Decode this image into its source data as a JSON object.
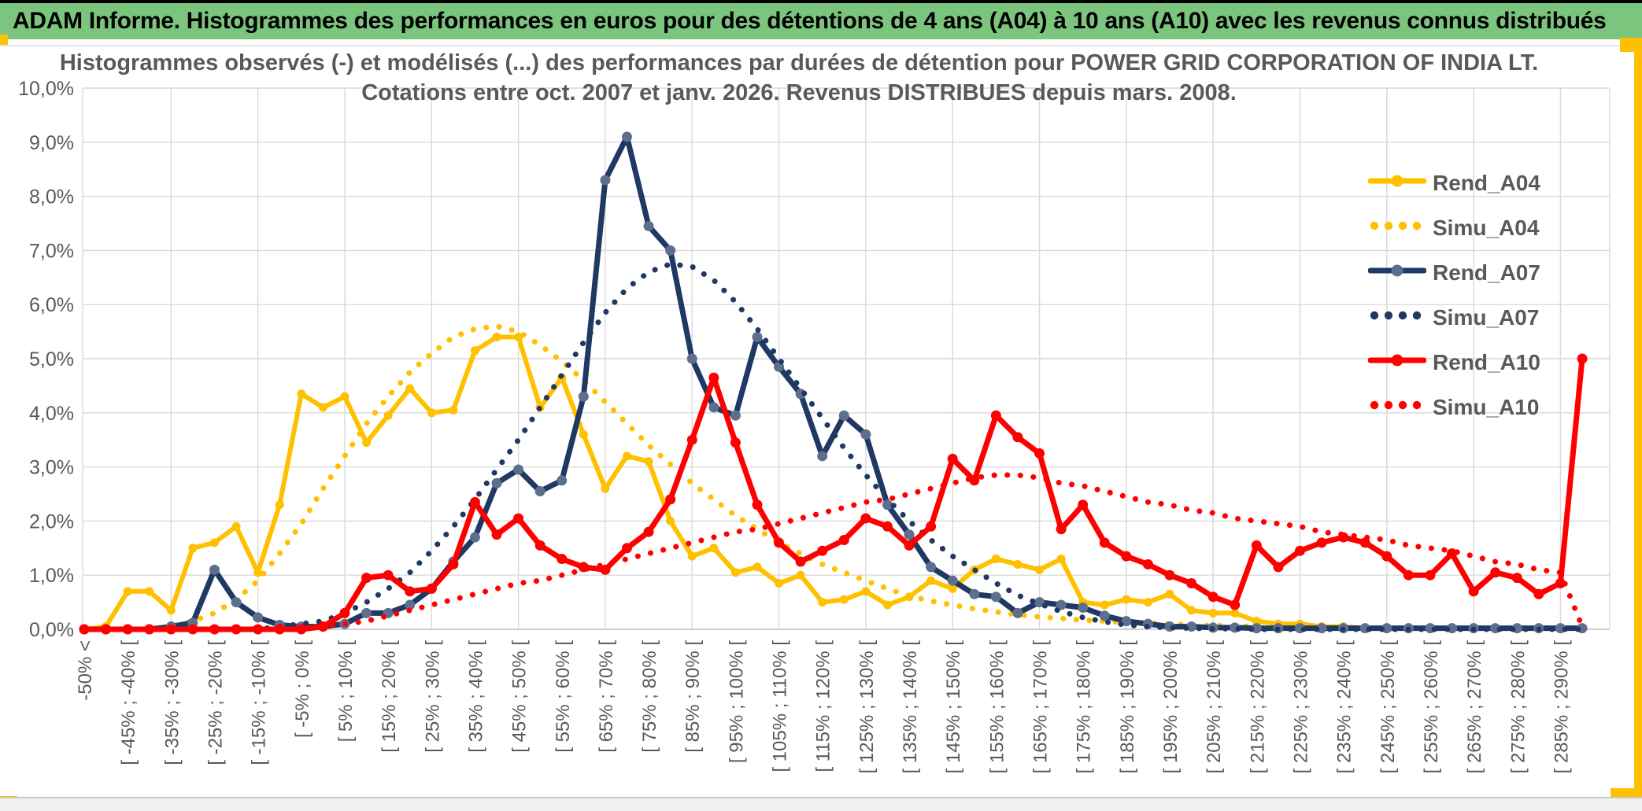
{
  "banner": {
    "text": "ADAM Informe. Histogrammes des performances en euros pour des détentions de 4 ans (A04) à 10 ans (A10) avec les revenus connus distribués"
  },
  "title": {
    "line1": "Histogrammes observés (-) et modélisés (...) des performances par durées de détention pour POWER GRID CORPORATION OF INDIA LT.",
    "line2": "Cotations entre oct. 2007 et janv. 2026. Revenus DISTRIBUES depuis mars. 2008."
  },
  "colors": {
    "gold": "#FFC000",
    "navy": "#1F3864",
    "navy_marker": "#5E6F8D",
    "red": "#FF0000",
    "text_gray": "#595959",
    "grid": "#D9D9D9",
    "axis": "#BFBFBF",
    "banner_bg": "#7CC57E",
    "frame_accent": "#FFC000"
  },
  "legend": {
    "items": [
      {
        "label": "Rend_A04",
        "style": "solid",
        "color": "#FFC000",
        "marker_color": "#FFC000"
      },
      {
        "label": "Simu_A04",
        "style": "dotted",
        "color": "#FFC000"
      },
      {
        "label": "Rend_A07",
        "style": "solid",
        "color": "#1F3864",
        "marker_color": "#5E6F8D"
      },
      {
        "label": "Simu_A07",
        "style": "dotted",
        "color": "#1F3864"
      },
      {
        "label": "Rend_A10",
        "style": "solid",
        "color": "#FF0000",
        "marker_color": "#FF0000"
      },
      {
        "label": "Simu_A10",
        "style": "dotted",
        "color": "#FF0000"
      }
    ]
  },
  "chart_data": {
    "type": "line",
    "title": "Histogrammes observés (-) et modélisés (...) des performances par durées de détention pour POWER GRID CORPORATION OF INDIA LT. Cotations entre oct. 2007 et janv. 2026. Revenus DISTRIBUES depuis mars. 2008.",
    "xlabel": "",
    "ylabel": "",
    "ylim": [
      0,
      10
    ],
    "y_tick_step_pct": 1,
    "grid": true,
    "legend_position": "right-inside",
    "y_tick_labels": [
      "10,0%",
      "9,0%",
      "8,0%",
      "7,0%",
      "6,0%",
      "5,0%",
      "4,0%",
      "3,0%",
      "2,0%",
      "1,0%",
      "0,0%"
    ],
    "x_labels": [
      "-50% <",
      "[ -45% ; -40% [",
      "[ -35% ; -30% [",
      "[ -25% ; -20% [",
      "[ -15% ; -10% [",
      "[ -5% ; 0% [",
      "[ 5% ; 10% [",
      "[ 15% ; 20% [",
      "[ 25% ; 30% [",
      "[ 35% ; 40% [",
      "[ 45% ; 50% [",
      "[ 55% ; 60% [",
      "[ 65% ; 70% [",
      "[ 75% ; 80% [",
      "[ 85% ; 90% [",
      "[ 95% ; 100% [",
      "[ 105% ; 110% [",
      "[ 115% ; 120% [",
      "[ 125% ; 130% [",
      "[ 135% ; 140% [",
      "[ 145% ; 150% [",
      "[ 155% ; 160% [",
      "[ 165% ; 170% [",
      "[ 175% ; 180% [",
      "[ 185% ; 190% [",
      "[ 195% ; 200% [",
      "[ 205% ; 210% [",
      "[ 215% ; 220% [",
      "[ 225% ; 230% [",
      "[ 235% ; 240% [",
      "[ 245% ; 250% [",
      "[ 255% ; 260% [",
      "[ 265% ; 270% [",
      "[ 275% ; 280% [",
      "[ 285% ; 290% ["
    ],
    "bins_per_label": 2,
    "n_bins": 70,
    "series": [
      {
        "name": "Rend_A04",
        "style": "solid",
        "color": "#FFC000",
        "marker": true,
        "marker_color": "#FFC000",
        "marker_r": 5.5,
        "width": 6,
        "values": [
          0,
          0.05,
          0.7,
          0.7,
          0.35,
          1.5,
          1.6,
          1.9,
          1.05,
          2.3,
          4.35,
          4.1,
          4.3,
          3.45,
          3.95,
          4.45,
          4.0,
          4.05,
          5.15,
          5.4,
          5.4,
          4.1,
          4.65,
          3.6,
          2.6,
          3.2,
          3.1,
          2.0,
          1.35,
          1.5,
          1.05,
          1.15,
          0.85,
          1.0,
          0.5,
          0.55,
          0.7,
          0.45,
          0.6,
          0.9,
          0.75,
          1.1,
          1.3,
          1.2,
          1.1,
          1.3,
          0.5,
          0.45,
          0.55,
          0.5,
          0.65,
          0.35,
          0.3,
          0.3,
          0.15,
          0.1,
          0.1,
          0.05,
          0.05,
          0.02,
          0.02,
          0.02,
          0.02,
          0.02,
          0.02,
          0.02,
          0.02,
          0.02,
          0.02,
          0.02
        ]
      },
      {
        "name": "Simu_A04",
        "style": "dotted",
        "color": "#FFC000",
        "marker": false,
        "width": 7,
        "values": [
          0,
          0,
          0,
          0,
          0.05,
          0.15,
          0.3,
          0.55,
          0.9,
          1.4,
          1.95,
          2.6,
          3.2,
          3.8,
          4.3,
          4.75,
          5.1,
          5.4,
          5.55,
          5.6,
          5.5,
          5.25,
          4.95,
          4.6,
          4.2,
          3.8,
          3.4,
          3.05,
          2.7,
          2.4,
          2.1,
          1.85,
          1.6,
          1.4,
          1.2,
          1.05,
          0.9,
          0.75,
          0.62,
          0.52,
          0.45,
          0.38,
          0.32,
          0.27,
          0.23,
          0.2,
          0.17,
          0.15,
          0.13,
          0.11,
          0.1,
          0.08,
          0.07,
          0.06,
          0.05,
          0.05,
          0.04,
          0.04,
          0.03,
          0.03,
          0.02,
          0.02,
          0.02,
          0.02,
          0.02,
          0.02,
          0.02,
          0.02,
          0.02,
          0.02
        ]
      },
      {
        "name": "Rend_A07",
        "style": "solid",
        "color": "#1F3864",
        "marker": true,
        "marker_color": "#5E6F8D",
        "marker_r": 6.5,
        "width": 7,
        "values": [
          0,
          0,
          0,
          0,
          0.05,
          0.12,
          1.1,
          0.5,
          0.22,
          0.08,
          0.05,
          0.05,
          0.1,
          0.3,
          0.3,
          0.45,
          0.75,
          1.25,
          1.7,
          2.7,
          2.95,
          2.55,
          2.75,
          4.3,
          8.3,
          9.1,
          7.45,
          7.0,
          5.0,
          4.1,
          3.95,
          5.4,
          4.85,
          4.35,
          3.2,
          3.95,
          3.6,
          2.3,
          1.75,
          1.15,
          0.9,
          0.65,
          0.6,
          0.3,
          0.5,
          0.45,
          0.4,
          0.25,
          0.15,
          0.1,
          0.05,
          0.05,
          0.03,
          0.03,
          0.02,
          0.02,
          0.02,
          0.02,
          0.02,
          0.02,
          0.02,
          0.02,
          0.02,
          0.02,
          0.02,
          0.02,
          0.02,
          0.02,
          0.02,
          0.02
        ]
      },
      {
        "name": "Simu_A07",
        "style": "dotted",
        "color": "#1F3864",
        "marker": false,
        "width": 7,
        "values": [
          0,
          0,
          0,
          0,
          0,
          0,
          0,
          0,
          0,
          0.05,
          0.1,
          0.15,
          0.3,
          0.5,
          0.75,
          1.05,
          1.45,
          1.9,
          2.4,
          2.95,
          3.5,
          4.1,
          4.7,
          5.3,
          5.85,
          6.3,
          6.6,
          6.75,
          6.7,
          6.45,
          6.05,
          5.55,
          5.0,
          4.45,
          3.9,
          3.35,
          2.85,
          2.4,
          2.0,
          1.65,
          1.35,
          1.1,
          0.85,
          0.63,
          0.47,
          0.33,
          0.22,
          0.14,
          0.08,
          0.05,
          0.03,
          0.02,
          0.01,
          0.01,
          0,
          0,
          0,
          0,
          0,
          0,
          0,
          0,
          0,
          0,
          0,
          0,
          0,
          0,
          0,
          0
        ]
      },
      {
        "name": "Rend_A10",
        "style": "solid",
        "color": "#FF0000",
        "marker": true,
        "marker_color": "#FF0000",
        "marker_r": 6.5,
        "width": 7,
        "values": [
          0,
          0,
          0,
          0,
          0,
          0,
          0,
          0,
          0,
          0,
          0,
          0.05,
          0.3,
          0.95,
          1.0,
          0.7,
          0.75,
          1.2,
          2.35,
          1.75,
          2.05,
          1.55,
          1.3,
          1.15,
          1.1,
          1.5,
          1.8,
          2.4,
          3.5,
          4.65,
          3.45,
          2.3,
          1.6,
          1.25,
          1.45,
          1.65,
          2.05,
          1.9,
          1.55,
          1.9,
          3.15,
          2.75,
          3.95,
          3.55,
          3.25,
          1.85,
          2.3,
          1.6,
          1.35,
          1.2,
          1.0,
          0.85,
          0.6,
          0.45,
          1.55,
          1.15,
          1.45,
          1.6,
          1.7,
          1.6,
          1.35,
          1.0,
          1.0,
          1.4,
          0.7,
          1.05,
          0.95,
          0.65,
          0.85,
          5.0
        ]
      },
      {
        "name": "Simu_A10",
        "style": "dotted",
        "color": "#FF0000",
        "marker": false,
        "width": 7,
        "values": [
          0,
          0,
          0,
          0,
          0,
          0,
          0,
          0,
          0,
          0,
          0.02,
          0.05,
          0.1,
          0.15,
          0.25,
          0.35,
          0.45,
          0.55,
          0.65,
          0.75,
          0.85,
          0.9,
          1.0,
          1.1,
          1.2,
          1.3,
          1.4,
          1.5,
          1.6,
          1.7,
          1.8,
          1.85,
          1.95,
          2.05,
          2.15,
          2.25,
          2.35,
          2.4,
          2.5,
          2.6,
          2.7,
          2.8,
          2.85,
          2.85,
          2.8,
          2.7,
          2.65,
          2.55,
          2.45,
          2.35,
          2.3,
          2.2,
          2.15,
          2.05,
          2.0,
          1.95,
          1.9,
          1.8,
          1.75,
          1.7,
          1.65,
          1.55,
          1.5,
          1.45,
          1.35,
          1.25,
          1.2,
          1.1,
          1.05,
          0.05
        ]
      }
    ]
  }
}
